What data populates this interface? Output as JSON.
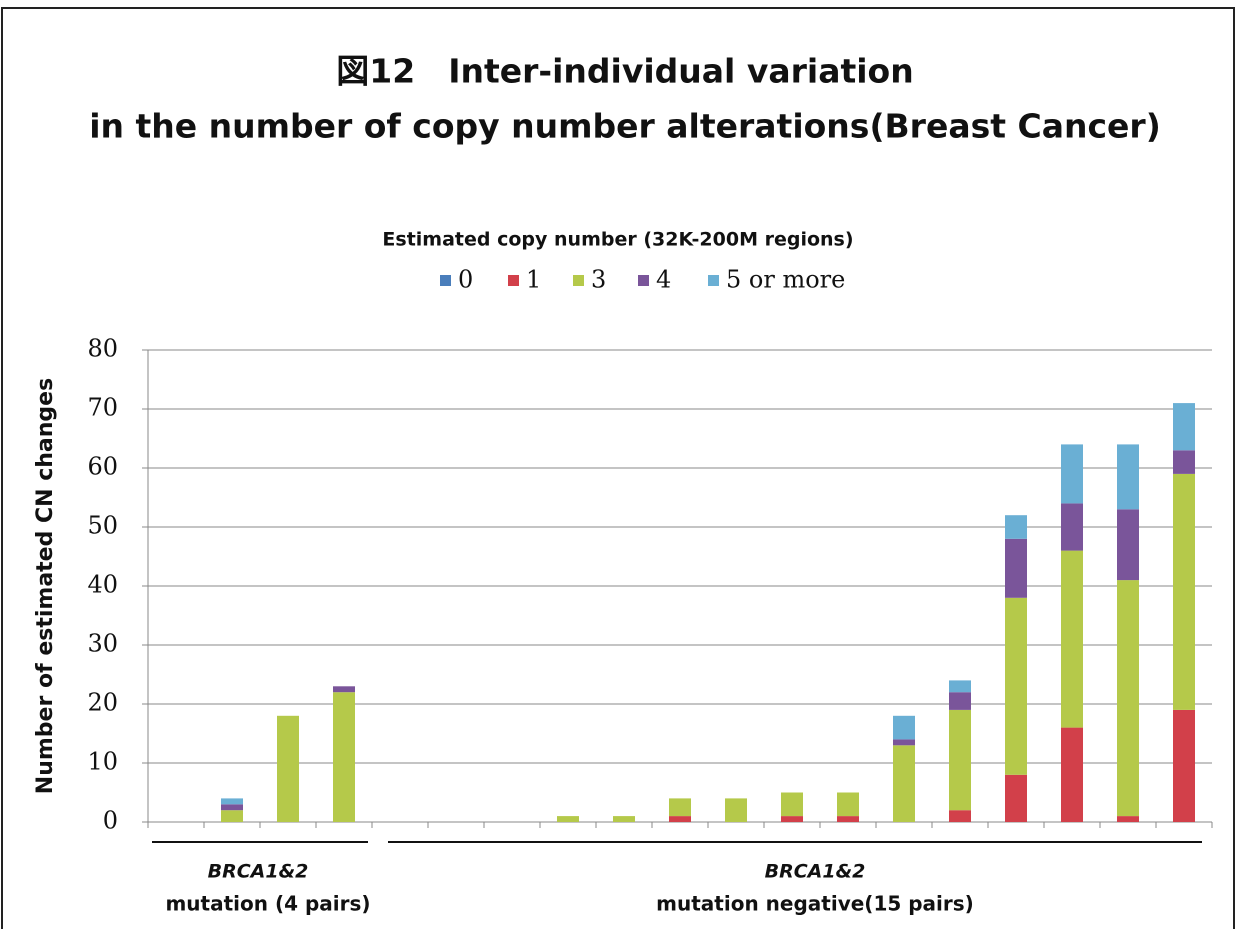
{
  "chart_data": {
    "type": "stacked_bar",
    "title": [
      "図12　Inter-individual variation",
      "in the number of copy number alterations(Breast Cancer)"
    ],
    "legend_title": "Estimated copy number (32K-200M regions)",
    "y_label": "Number of estimated CN changes",
    "categories": [
      null,
      null,
      null,
      null,
      null,
      null,
      null,
      null,
      null,
      null,
      null,
      null,
      null,
      null,
      null,
      null,
      null,
      null,
      null
    ],
    "series": [
      {
        "name": "0",
        "color": "#4a7ebb",
        "values": [
          0,
          0,
          0,
          0,
          0,
          0,
          0,
          0,
          0,
          0,
          0,
          0,
          0,
          0,
          0,
          0,
          0,
          0,
          0
        ]
      },
      {
        "name": "1",
        "color": "#d2404a",
        "values": [
          0,
          0,
          0,
          0,
          0,
          0,
          0,
          0,
          0,
          1,
          0,
          1,
          1,
          0,
          2,
          8,
          16,
          1,
          19
        ]
      },
      {
        "name": "3",
        "color": "#b5c94a",
        "values": [
          0,
          2,
          18,
          22,
          0,
          0,
          0,
          1,
          1,
          3,
          4,
          4,
          4,
          13,
          17,
          30,
          30,
          40,
          40
        ]
      },
      {
        "name": "4",
        "color": "#7a559a",
        "values": [
          0,
          1,
          0,
          1,
          0,
          0,
          0,
          0,
          0,
          0,
          0,
          0,
          0,
          1,
          3,
          10,
          8,
          12,
          4
        ]
      },
      {
        "name": "5 or more",
        "color": "#6aafd4",
        "values": [
          0,
          1,
          0,
          0,
          0,
          0,
          0,
          0,
          0,
          0,
          0,
          0,
          0,
          4,
          2,
          4,
          10,
          11,
          8
        ]
      }
    ],
    "ylim": [
      0,
      80
    ],
    "yticks": [
      0,
      10,
      20,
      30,
      40,
      50,
      60,
      70,
      80
    ],
    "grid": true,
    "groups": [
      {
        "gene": "BRCA1&2",
        "label": "mutation (4 pairs)"
      },
      {
        "gene": "BRCA1&2",
        "label": "mutation negative(15 pairs)"
      }
    ]
  }
}
